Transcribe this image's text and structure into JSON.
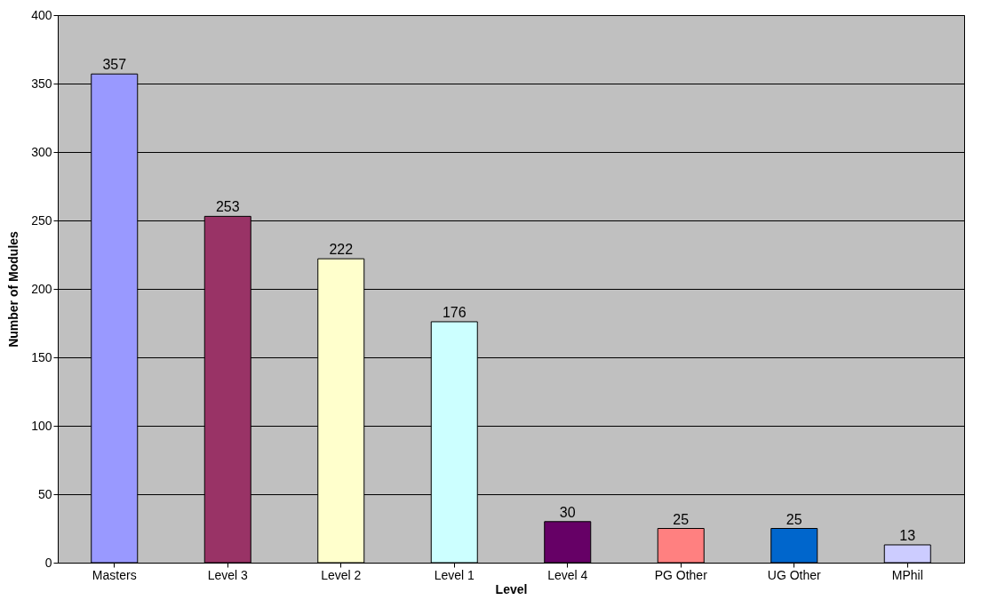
{
  "chart_data": {
    "type": "bar",
    "xlabel": "Level",
    "ylabel": "Number of Modules",
    "categories": [
      "Masters",
      "Level 3",
      "Level 2",
      "Level 1",
      "Level 4",
      "PG Other",
      "UG Other",
      "MPhil"
    ],
    "values": [
      357,
      253,
      222,
      176,
      30,
      25,
      25,
      13
    ],
    "colors": [
      "#9999ff",
      "#993366",
      "#ffffcc",
      "#ccffff",
      "#660066",
      "#ff8080",
      "#0066cc",
      "#ccccff"
    ],
    "ylim": [
      0,
      400
    ],
    "yticks": [
      0,
      50,
      100,
      150,
      200,
      250,
      300,
      350,
      400
    ],
    "grid": "y",
    "data_labels": true
  }
}
